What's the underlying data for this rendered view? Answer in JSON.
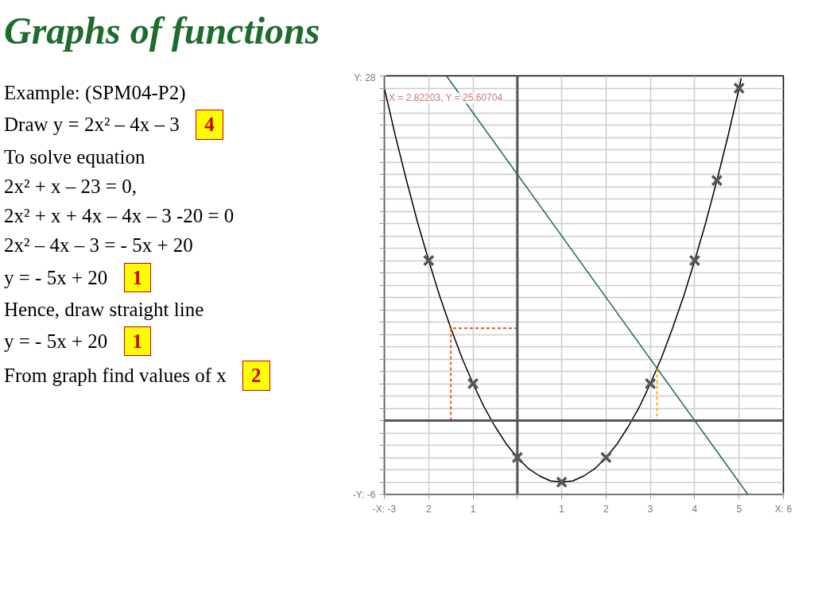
{
  "chart_data": {
    "type": "line",
    "title": "Graphs of functions",
    "annotations": [
      "Example: (SPM04-P2)",
      "Draw  y = 2x² – 4x – 3",
      "4",
      "To solve equation",
      "2x² + x – 23 = 0,",
      "2x² + x + 4x – 4x – 3 -20 = 0",
      "2x² – 4x – 3 = - 5x + 20",
      "y = - 5x + 20",
      "1",
      "Hence, draw straight line",
      "y = - 5x + 20",
      "1",
      "From graph find values of x",
      "2",
      {
        "text": "X = 2.82203, Y = 25.60704",
        "x": -2.9,
        "y": 26.2
      }
    ],
    "series": [
      {
        "color": "#000000",
        "marker": "none",
        "x": [
          -3,
          -2.75,
          -2.5,
          -2.25,
          -2,
          -1.75,
          -1.5,
          -1.25,
          -1,
          -0.75,
          -0.5,
          -0.25,
          0,
          0.25,
          0.5,
          0.75,
          1,
          1.25,
          1.5,
          1.75,
          2,
          2.25,
          2.5,
          2.75,
          3,
          3.25,
          3.5,
          3.75,
          4,
          4.25,
          4.5,
          4.75,
          5,
          5.05
        ],
        "values": [
          27,
          23.1,
          19.5,
          16.1,
          13,
          10.1,
          7.5,
          5.1,
          3,
          1.1,
          -0.5,
          -1.9,
          -3,
          -3.9,
          -4.5,
          -4.9,
          -5,
          -4.9,
          -4.5,
          -3.9,
          -3,
          -1.9,
          -0.5,
          1.1,
          3,
          5.1,
          7.5,
          10.1,
          13,
          16.1,
          19.5,
          23.1,
          27,
          27.8
        ]
      },
      {
        "type": "scatter",
        "color": "#555555",
        "marker": "cross",
        "x": [
          -2,
          -1,
          0,
          1,
          2,
          3,
          4,
          4.5,
          5
        ],
        "values": [
          13,
          3,
          -3,
          -5,
          -3,
          3,
          13,
          19.5,
          27
        ]
      },
      {
        "color": "#1e6b4f",
        "marker": "none",
        "x": [
          -1.6,
          5.2
        ],
        "values": [
          28,
          -6
        ]
      },
      {
        "color": "#ff4500",
        "marker": "none",
        "line_style": "dashed",
        "x": [
          -1.5,
          -1.5,
          0
        ],
        "values": [
          0,
          7.5,
          7.5
        ]
      },
      {
        "color": "#ffa500",
        "marker": "none",
        "line_style": "dashed",
        "x": [
          3.15,
          3.15
        ],
        "values": [
          4.2,
          0
        ]
      }
    ],
    "xlim": [
      -3,
      6
    ],
    "ylim": [
      -6,
      28
    ],
    "xticks": [
      {
        "value": -3,
        "label": "-X: -3"
      },
      {
        "value": -2,
        "label": "2"
      },
      {
        "value": -1,
        "label": "1"
      },
      {
        "value": 0,
        "label": null
      },
      1,
      2,
      3,
      4,
      5,
      {
        "value": 6,
        "label": "X: 6"
      }
    ],
    "yticks": [
      {
        "value": -6,
        "label": "-Y: -6"
      },
      {
        "value": -5,
        "label": null
      },
      {
        "value": -4,
        "label": null
      },
      {
        "value": -3,
        "label": null
      },
      {
        "value": -2,
        "label": null
      },
      {
        "value": -1,
        "label": null
      },
      {
        "value": 0,
        "label": null
      },
      {
        "value": 1,
        "label": null
      },
      {
        "value": 2,
        "label": null
      },
      {
        "value": 3,
        "label": null
      },
      {
        "value": 4,
        "label": null
      },
      {
        "value": 5,
        "label": null
      },
      {
        "value": 6,
        "label": null
      },
      {
        "value": 7,
        "label": null
      },
      {
        "value": 8,
        "label": null
      },
      {
        "value": 9,
        "label": null
      },
      {
        "value": 10,
        "label": null
      },
      {
        "value": 11,
        "label": null
      },
      {
        "value": 12,
        "label": null
      },
      {
        "value": 13,
        "label": null
      },
      {
        "value": 14,
        "label": null
      },
      {
        "value": 15,
        "label": null
      },
      {
        "value": 16,
        "label": null
      },
      {
        "value": 17,
        "label": null
      },
      {
        "value": 18,
        "label": null
      },
      {
        "value": 19,
        "label": null
      },
      {
        "value": 20,
        "label": null
      },
      {
        "value": 21,
        "label": null
      },
      {
        "value": 22,
        "label": null
      },
      {
        "value": 23,
        "label": null
      },
      {
        "value": 24,
        "label": null
      },
      {
        "value": 25,
        "label": null
      },
      {
        "value": 26,
        "label": null
      },
      {
        "value": 27,
        "label": null
      },
      {
        "value": 28,
        "label": "Y: 28"
      }
    ],
    "grid": true
  }
}
